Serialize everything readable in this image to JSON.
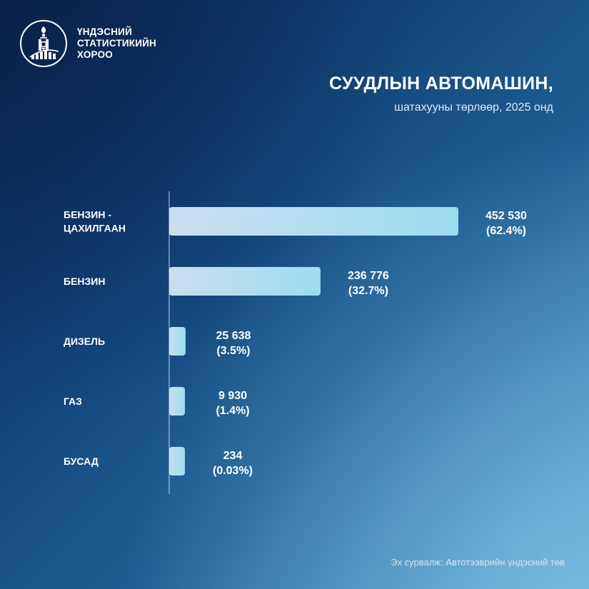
{
  "org": {
    "name_lines": [
      "ҮНДЭСНИЙ",
      "СТАТИСТИКИЙН",
      "ХОРОО"
    ],
    "logo_icon": "soyombo-emblem-icon"
  },
  "title": "СУУДЛЫН АВТОМАШИН,",
  "subtitle": "шатахууны төрлөөр, 2025 онд",
  "source": "Эх сурвалж: Автотээврийн үндэсний төв",
  "colors": {
    "bar_start": "#c9dff0",
    "bar_end": "#9ddcf0",
    "axis": "#c6d6e6"
  },
  "chart_data": {
    "type": "bar",
    "orientation": "horizontal",
    "categories": [
      [
        "БЕНЗИН -",
        "ЦАХИЛГААН"
      ],
      [
        "БЕНЗИН"
      ],
      [
        "ДИЗЕЛЬ"
      ],
      [
        "ГАЗ"
      ],
      [
        "БУСАД"
      ]
    ],
    "values": [
      452530,
      236776,
      25638,
      9930,
      234
    ],
    "value_labels": [
      "452 530",
      "236 776",
      "25 638",
      "9 930",
      "234"
    ],
    "percent_labels": [
      "(62.4%)",
      "(32.7%)",
      "(3.5%)",
      "(1.4%)",
      "(0.03%)"
    ],
    "xlabel": "",
    "ylabel": "",
    "grid": false,
    "legend": "none"
  }
}
